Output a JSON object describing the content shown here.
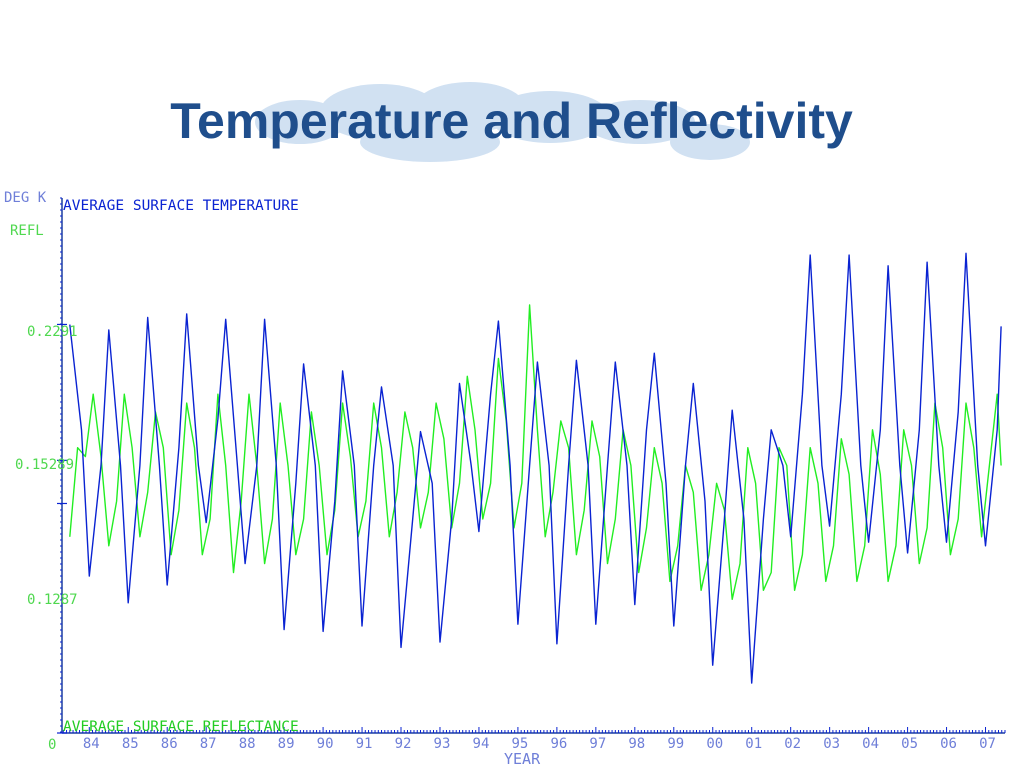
{
  "slide": {
    "title": "Temperature and Reflectivity"
  },
  "colors": {
    "title": "#1f4e8c",
    "temperature": "#0a23d2",
    "reflectance": "#22ee22",
    "axis": "#1b3fa0"
  },
  "chart_data": {
    "type": "line",
    "title": "",
    "ylabel_temperature": "DEG K",
    "ylabel_reflectance": "REFL",
    "xlabel": "YEAR",
    "x_range": [
      1983.3,
      2007.5
    ],
    "x_ticks": [
      "84",
      "85",
      "86",
      "87",
      "88",
      "89",
      "90",
      "91",
      "92",
      "93",
      "94",
      "95",
      "96",
      "97",
      "98",
      "99",
      "00",
      "01",
      "02",
      "03",
      "04",
      "05",
      "06",
      "07"
    ],
    "y_tick_labels": [
      "0",
      "0.1287",
      "0.15289",
      "0.2291"
    ],
    "reflectance_ticks": [
      0,
      0.1287,
      0.15289,
      0.2291
    ],
    "reflectance_range": [
      0,
      0.3
    ],
    "grid": false,
    "legend": "text labels top-left and bottom-left",
    "series": [
      {
        "name": "AVERAGE SURFACE TEMPERATURE",
        "axis": "left",
        "note": "monthly surface temperature, values on reflectance-scaled axis",
        "x": [
          1983.5,
          1983.8,
          1984.0,
          1984.3,
          1984.5,
          1984.8,
          1985.0,
          1985.3,
          1985.5,
          1985.8,
          1986.0,
          1986.3,
          1986.5,
          1986.8,
          1987.0,
          1987.3,
          1987.5,
          1987.8,
          1988.0,
          1988.3,
          1988.5,
          1988.8,
          1989.0,
          1989.3,
          1989.5,
          1989.8,
          1990.0,
          1990.3,
          1990.5,
          1990.8,
          1991.0,
          1991.3,
          1991.5,
          1991.8,
          1992.0,
          1992.3,
          1992.5,
          1992.8,
          1993.0,
          1993.3,
          1993.5,
          1993.8,
          1994.0,
          1994.3,
          1994.5,
          1994.8,
          1995.0,
          1995.3,
          1995.5,
          1995.8,
          1996.0,
          1996.3,
          1996.5,
          1996.8,
          1997.0,
          1997.3,
          1997.5,
          1997.8,
          1998.0,
          1998.3,
          1998.5,
          1998.8,
          1999.0,
          1999.3,
          1999.5,
          1999.8,
          2000.0,
          2000.3,
          2000.5,
          2000.8,
          2001.0,
          2001.3,
          2001.5,
          2001.8,
          2002.0,
          2002.3,
          2002.5,
          2002.8,
          2003.0,
          2003.3,
          2003.5,
          2003.8,
          2004.0,
          2004.3,
          2004.5,
          2004.8,
          2005.0,
          2005.3,
          2005.5,
          2005.8,
          2006.0,
          2006.3,
          2006.5,
          2006.8,
          2007.0,
          2007.3,
          2007.4
        ],
        "values": [
          0.229,
          0.17,
          0.088,
          0.15,
          0.226,
          0.15,
          0.073,
          0.15,
          0.233,
          0.15,
          0.083,
          0.16,
          0.235,
          0.15,
          0.118,
          0.176,
          0.232,
          0.15,
          0.095,
          0.15,
          0.232,
          0.15,
          0.058,
          0.14,
          0.207,
          0.15,
          0.057,
          0.13,
          0.203,
          0.15,
          0.06,
          0.15,
          0.194,
          0.15,
          0.048,
          0.12,
          0.169,
          0.14,
          0.051,
          0.12,
          0.196,
          0.15,
          0.113,
          0.19,
          0.231,
          0.15,
          0.061,
          0.15,
          0.208,
          0.15,
          0.05,
          0.15,
          0.209,
          0.15,
          0.061,
          0.15,
          0.208,
          0.15,
          0.072,
          0.17,
          0.213,
          0.14,
          0.06,
          0.15,
          0.196,
          0.13,
          0.038,
          0.12,
          0.181,
          0.12,
          0.028,
          0.12,
          0.17,
          0.15,
          0.11,
          0.19,
          0.268,
          0.15,
          0.116,
          0.19,
          0.268,
          0.15,
          0.107,
          0.17,
          0.262,
          0.15,
          0.101,
          0.17,
          0.264,
          0.15,
          0.107,
          0.18,
          0.269,
          0.15,
          0.105,
          0.17,
          0.228
        ],
        "color": "#0a23d2"
      },
      {
        "name": "AVERAGE SURFACE REFLECTANCE",
        "axis": "right",
        "note": "monthly surface reflectance",
        "x": [
          1983.5,
          1983.7,
          1983.9,
          1984.1,
          1984.3,
          1984.5,
          1984.7,
          1984.9,
          1985.1,
          1985.3,
          1985.5,
          1985.7,
          1985.9,
          1986.1,
          1986.3,
          1986.5,
          1986.7,
          1986.9,
          1987.1,
          1987.3,
          1987.5,
          1987.7,
          1987.9,
          1988.1,
          1988.3,
          1988.5,
          1988.7,
          1988.9,
          1989.1,
          1989.3,
          1989.5,
          1989.7,
          1989.9,
          1990.1,
          1990.3,
          1990.5,
          1990.7,
          1990.9,
          1991.1,
          1991.3,
          1991.5,
          1991.7,
          1991.9,
          1992.1,
          1992.3,
          1992.5,
          1992.7,
          1992.9,
          1993.1,
          1993.3,
          1993.5,
          1993.7,
          1993.9,
          1994.1,
          1994.3,
          1994.5,
          1994.7,
          1994.9,
          1995.1,
          1995.3,
          1995.5,
          1995.7,
          1995.9,
          1996.1,
          1996.3,
          1996.5,
          1996.7,
          1996.9,
          1997.1,
          1997.3,
          1997.5,
          1997.7,
          1997.9,
          1998.1,
          1998.3,
          1998.5,
          1998.7,
          1998.9,
          1999.1,
          1999.3,
          1999.5,
          1999.7,
          1999.9,
          2000.1,
          2000.3,
          2000.5,
          2000.7,
          2000.9,
          2001.1,
          2001.3,
          2001.5,
          2001.7,
          2001.9,
          2002.1,
          2002.3,
          2002.5,
          2002.7,
          2002.9,
          2003.1,
          2003.3,
          2003.5,
          2003.7,
          2003.9,
          2004.1,
          2004.3,
          2004.5,
          2004.7,
          2004.9,
          2005.1,
          2005.3,
          2005.5,
          2005.7,
          2005.9,
          2006.1,
          2006.3,
          2006.5,
          2006.7,
          2006.9,
          2007.1,
          2007.3,
          2007.4
        ],
        "values": [
          0.11,
          0.16,
          0.155,
          0.19,
          0.155,
          0.105,
          0.13,
          0.19,
          0.16,
          0.11,
          0.135,
          0.18,
          0.16,
          0.1,
          0.125,
          0.185,
          0.16,
          0.1,
          0.12,
          0.19,
          0.15,
          0.09,
          0.13,
          0.19,
          0.15,
          0.095,
          0.12,
          0.185,
          0.15,
          0.1,
          0.12,
          0.18,
          0.15,
          0.1,
          0.125,
          0.185,
          0.155,
          0.11,
          0.13,
          0.185,
          0.16,
          0.11,
          0.135,
          0.18,
          0.16,
          0.115,
          0.135,
          0.185,
          0.165,
          0.115,
          0.14,
          0.2,
          0.17,
          0.12,
          0.14,
          0.21,
          0.175,
          0.115,
          0.14,
          0.24,
          0.17,
          0.11,
          0.135,
          0.175,
          0.16,
          0.1,
          0.125,
          0.175,
          0.155,
          0.095,
          0.12,
          0.17,
          0.15,
          0.09,
          0.115,
          0.16,
          0.14,
          0.085,
          0.105,
          0.15,
          0.135,
          0.08,
          0.1,
          0.14,
          0.125,
          0.075,
          0.095,
          0.16,
          0.14,
          0.08,
          0.09,
          0.16,
          0.15,
          0.08,
          0.1,
          0.16,
          0.14,
          0.085,
          0.105,
          0.165,
          0.145,
          0.085,
          0.105,
          0.17,
          0.145,
          0.085,
          0.105,
          0.17,
          0.15,
          0.095,
          0.115,
          0.185,
          0.16,
          0.1,
          0.12,
          0.185,
          0.16,
          0.11,
          0.15,
          0.19,
          0.15
        ],
        "color": "#22ee22"
      }
    ]
  }
}
